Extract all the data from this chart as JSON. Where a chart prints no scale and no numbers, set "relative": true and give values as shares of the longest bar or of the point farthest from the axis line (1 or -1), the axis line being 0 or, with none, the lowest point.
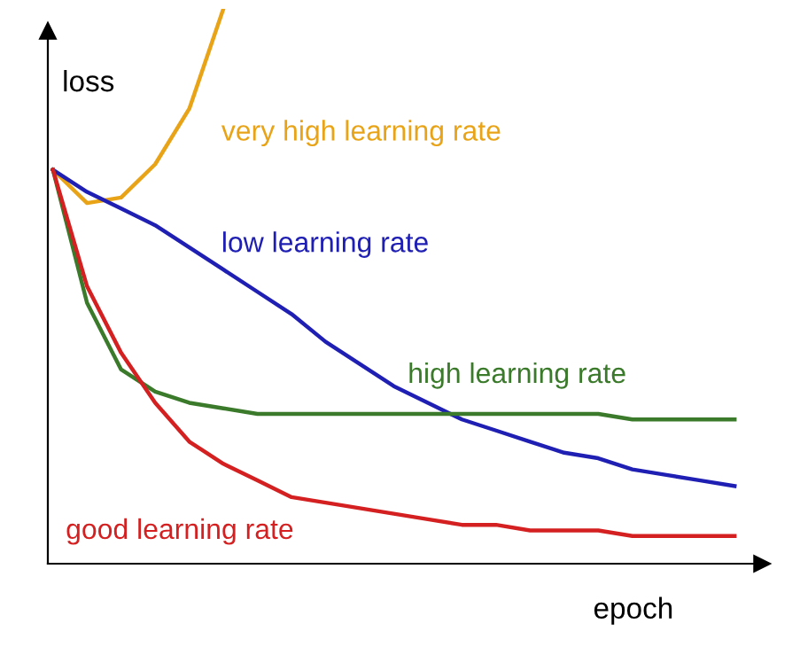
{
  "chart_data": {
    "type": "line",
    "relative": true,
    "xlabel": "epoch",
    "ylabel": "loss",
    "legend": false,
    "marker": "none",
    "line_style": "solid",
    "categories": [
      null,
      null,
      null,
      null,
      null,
      null,
      null,
      null,
      null,
      null,
      null,
      null,
      null,
      null,
      null,
      null,
      null,
      null,
      null,
      null,
      null
    ],
    "series": [
      {
        "name": "very high learning rate",
        "color": "#e8a317",
        "values": [
          0.71,
          0.65,
          0.66,
          0.72,
          0.82,
          1.0,
          null,
          null,
          null,
          null,
          null,
          null,
          null,
          null,
          null,
          null,
          null,
          null,
          null,
          null,
          null
        ]
      },
      {
        "name": "low learning rate",
        "color": "#1f1fb4",
        "values": [
          0.71,
          0.67,
          0.64,
          0.61,
          0.57,
          0.53,
          0.49,
          0.45,
          0.4,
          0.36,
          0.32,
          0.29,
          0.26,
          0.24,
          0.22,
          0.2,
          0.19,
          0.17,
          0.16,
          0.15,
          0.14
        ]
      },
      {
        "name": "high learning rate",
        "color": "#3a7a2a",
        "values": [
          0.71,
          0.47,
          0.35,
          0.31,
          0.29,
          0.28,
          0.27,
          0.27,
          0.27,
          0.27,
          0.27,
          0.27,
          0.27,
          0.27,
          0.27,
          0.27,
          0.27,
          0.26,
          0.26,
          0.26,
          0.26
        ]
      },
      {
        "name": "good learning rate",
        "color": "#d42020",
        "values": [
          0.71,
          0.5,
          0.38,
          0.29,
          0.22,
          0.18,
          0.15,
          0.12,
          0.11,
          0.1,
          0.09,
          0.08,
          0.07,
          0.07,
          0.06,
          0.06,
          0.06,
          0.05,
          0.05,
          0.05,
          0.05
        ]
      }
    ]
  }
}
